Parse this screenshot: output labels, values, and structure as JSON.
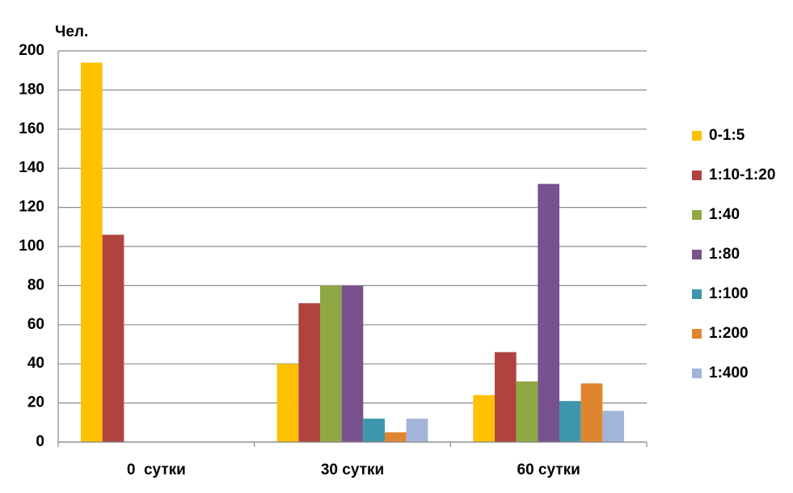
{
  "chart_data": {
    "type": "bar",
    "y_label": "Чел.",
    "categories": [
      "0  сутки",
      "30 сутки",
      "60 сутки"
    ],
    "series": [
      {
        "name": "0-1:5",
        "color": "#ffc000",
        "values": [
          194,
          40,
          24
        ]
      },
      {
        "name": "1:10-1:20",
        "color": "#b0433f",
        "values": [
          106,
          71,
          46
        ]
      },
      {
        "name": "1:40",
        "color": "#90a843",
        "values": [
          0,
          80,
          31
        ]
      },
      {
        "name": "1:80",
        "color": "#77528f",
        "values": [
          0,
          80,
          132
        ]
      },
      {
        "name": "1:100",
        "color": "#3d96ad",
        "values": [
          0,
          12,
          21
        ]
      },
      {
        "name": "1:200",
        "color": "#e0852f",
        "values": [
          0,
          5,
          30
        ]
      },
      {
        "name": "1:400",
        "color": "#a2b4d9",
        "values": [
          0,
          12,
          16
        ]
      }
    ],
    "ylim": [
      0,
      200
    ],
    "yticks": [
      0,
      20,
      40,
      60,
      80,
      100,
      120,
      140,
      160,
      180,
      200
    ],
    "grid": true,
    "legend": "right"
  }
}
